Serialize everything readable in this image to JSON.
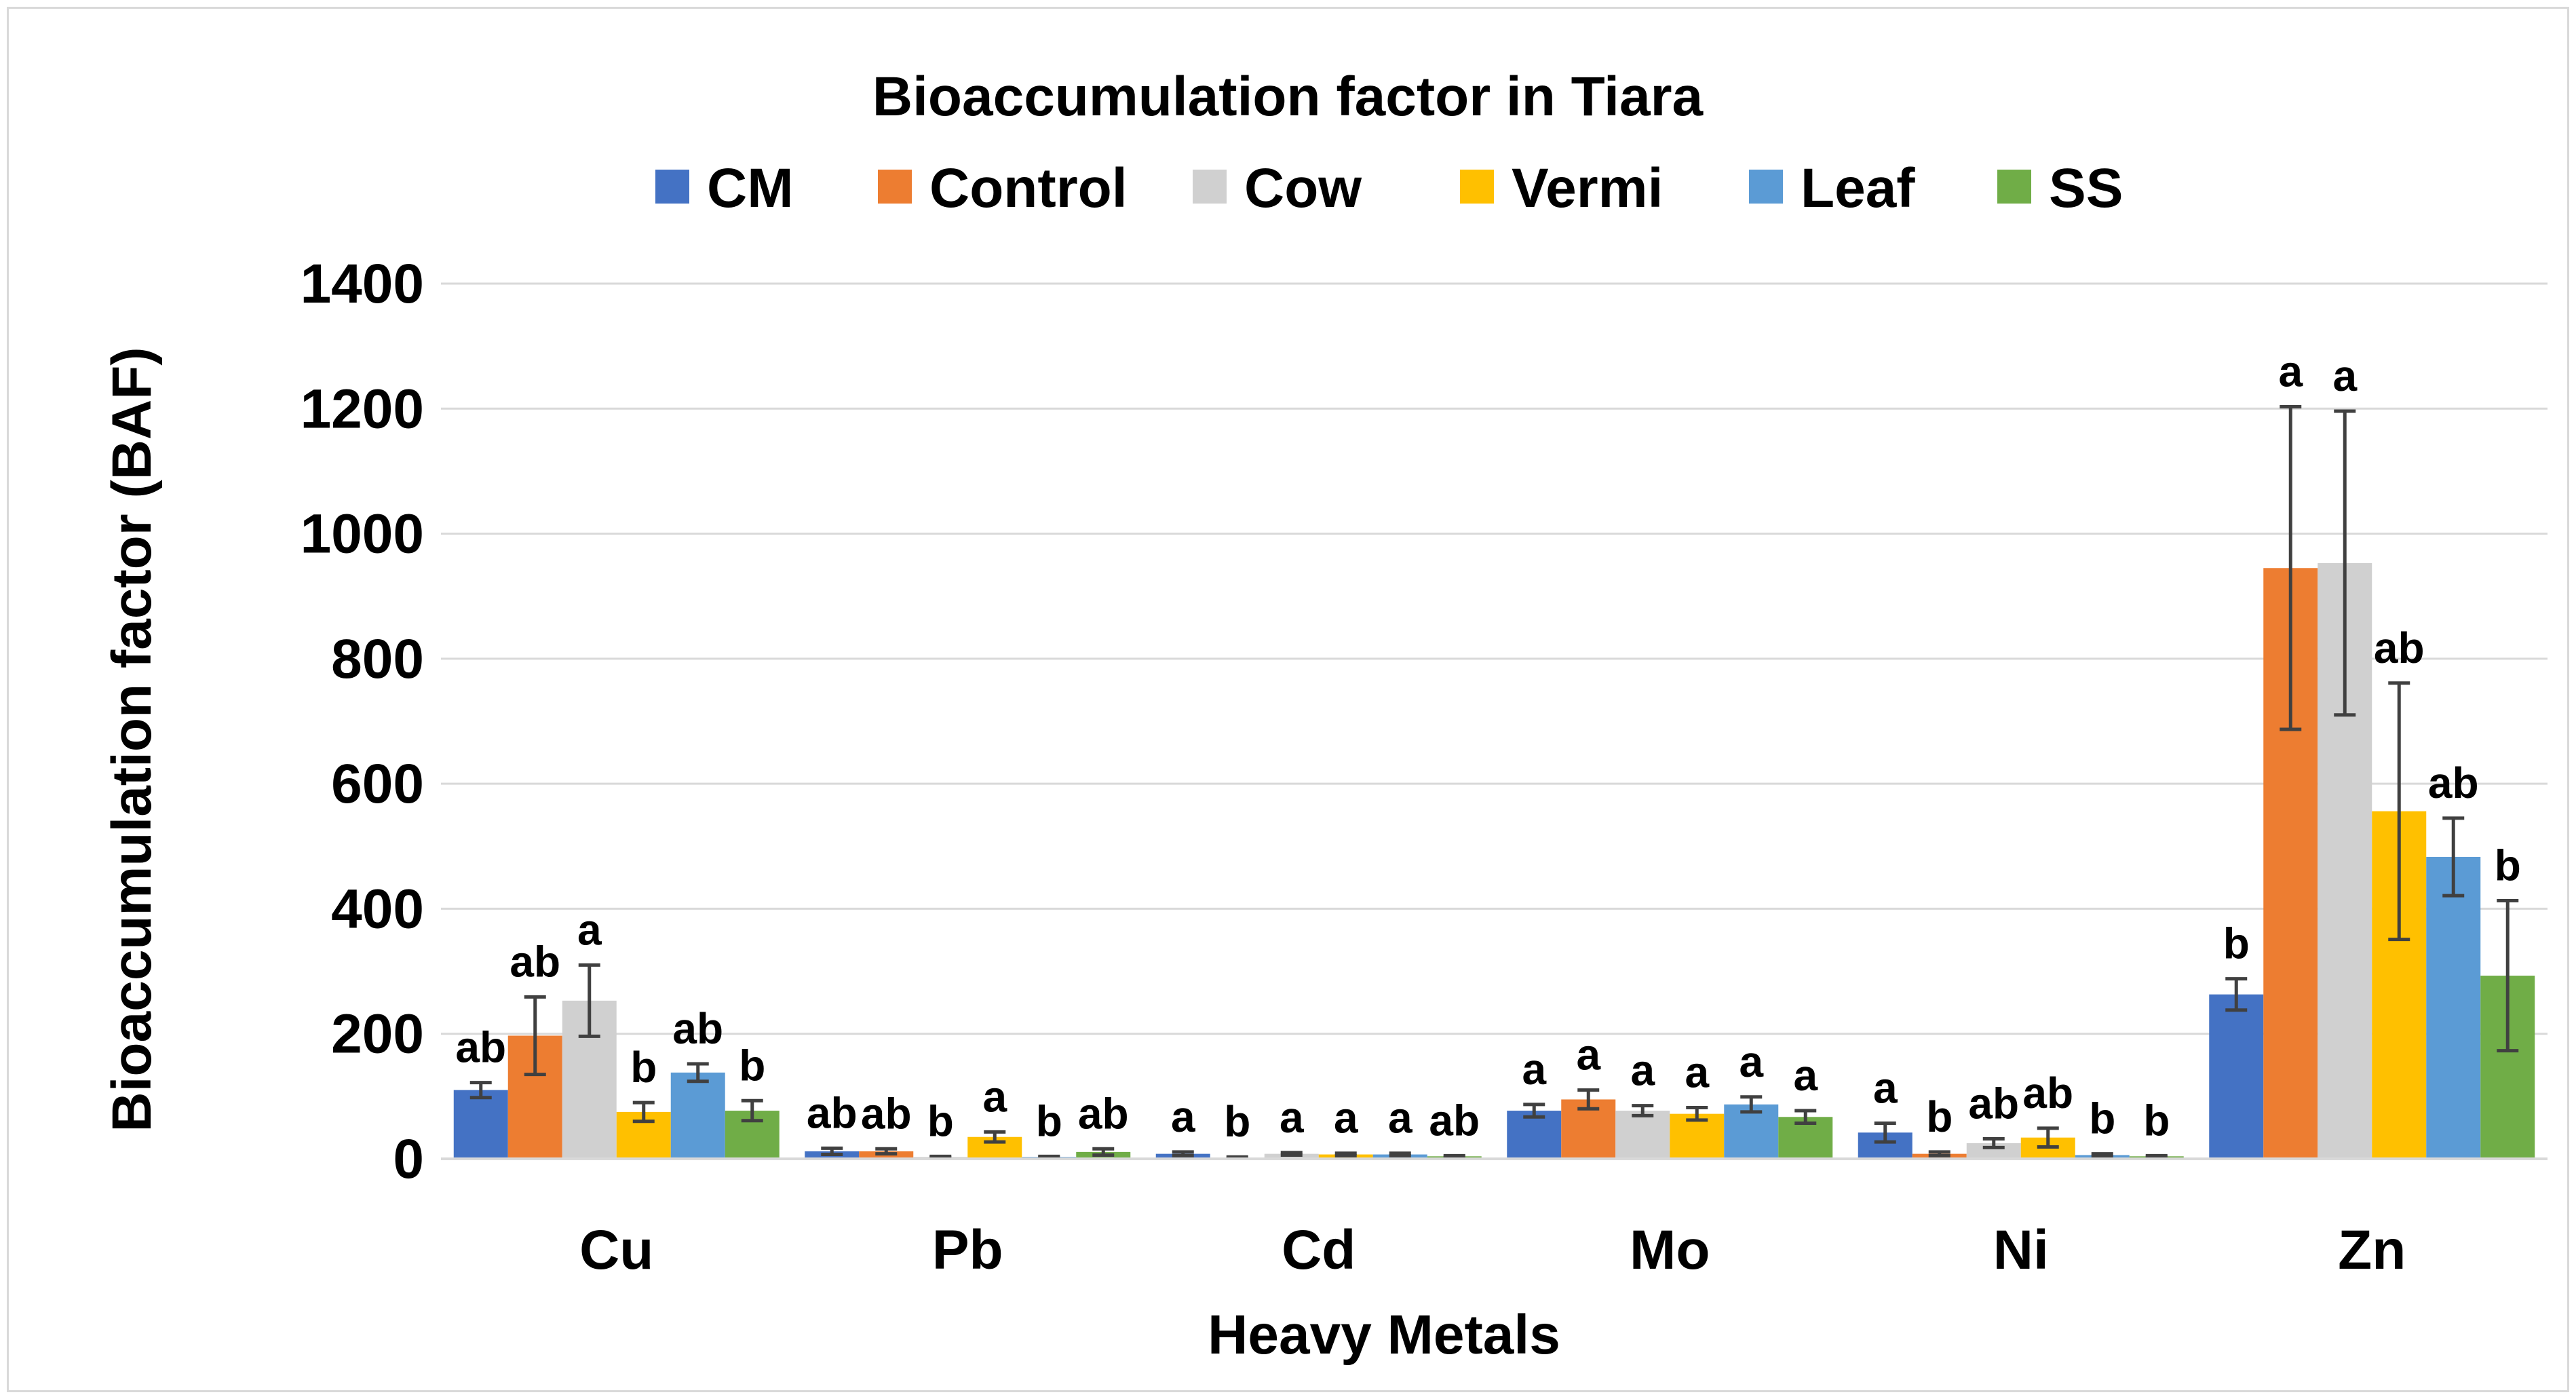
{
  "chart_data": {
    "type": "bar",
    "title": "Bioaccumulation factor in Tiara",
    "xlabel": "Heavy Metals",
    "ylabel": "Bioaccumulation factor (BAF)",
    "ylim": [
      0,
      1400
    ],
    "yticks": [
      0,
      200,
      400,
      600,
      800,
      1000,
      1200,
      1400
    ],
    "grid": true,
    "legend_position": "top",
    "categories": [
      "Cu",
      "Pb",
      "Cd",
      "Mo",
      "Ni",
      "Zn"
    ],
    "series": [
      {
        "name": "CM",
        "color": "#4472c4",
        "values": [
          110,
          12,
          8,
          77,
          42,
          263
        ],
        "errors": [
          12,
          5,
          3,
          10,
          15,
          25
        ],
        "labels": [
          "ab",
          "ab",
          "a",
          "a",
          "a",
          "b"
        ]
      },
      {
        "name": "Control",
        "color": "#ed7d31",
        "values": [
          197,
          12,
          2,
          95,
          8,
          945
        ],
        "errors": [
          62,
          4,
          1,
          15,
          3,
          258
        ],
        "labels": [
          "ab",
          "ab",
          "b",
          "a",
          "b",
          "a"
        ]
      },
      {
        "name": "Cow",
        "color": "#d0d0d0",
        "values": [
          253,
          3,
          8,
          77,
          25,
          953
        ],
        "errors": [
          57,
          1,
          2,
          8,
          7,
          243
        ],
        "labels": [
          "a",
          "b",
          "a",
          "a",
          "ab",
          "a"
        ]
      },
      {
        "name": "Vermi",
        "color": "#ffc000",
        "values": [
          75,
          35,
          7,
          72,
          34,
          556
        ],
        "errors": [
          15,
          8,
          2,
          10,
          15,
          205
        ],
        "labels": [
          "b",
          "a",
          "a",
          "a",
          "ab",
          "ab"
        ]
      },
      {
        "name": "Leaf",
        "color": "#5b9bd5",
        "values": [
          138,
          3,
          7,
          87,
          6,
          483
        ],
        "errors": [
          14,
          1,
          2,
          12,
          2,
          62
        ],
        "labels": [
          "ab",
          "b",
          "a",
          "a",
          "b",
          "ab"
        ]
      },
      {
        "name": "SS",
        "color": "#70ad47",
        "values": [
          77,
          11,
          4,
          67,
          4,
          293
        ],
        "errors": [
          16,
          5,
          1,
          10,
          1,
          120
        ],
        "labels": [
          "b",
          "ab",
          "ab",
          "a",
          "b",
          "b"
        ]
      }
    ]
  },
  "colors": {
    "gridline": "#d9d9d9",
    "axis": "#d9d9d9",
    "error_bar": "#404040",
    "text": "#000000"
  }
}
